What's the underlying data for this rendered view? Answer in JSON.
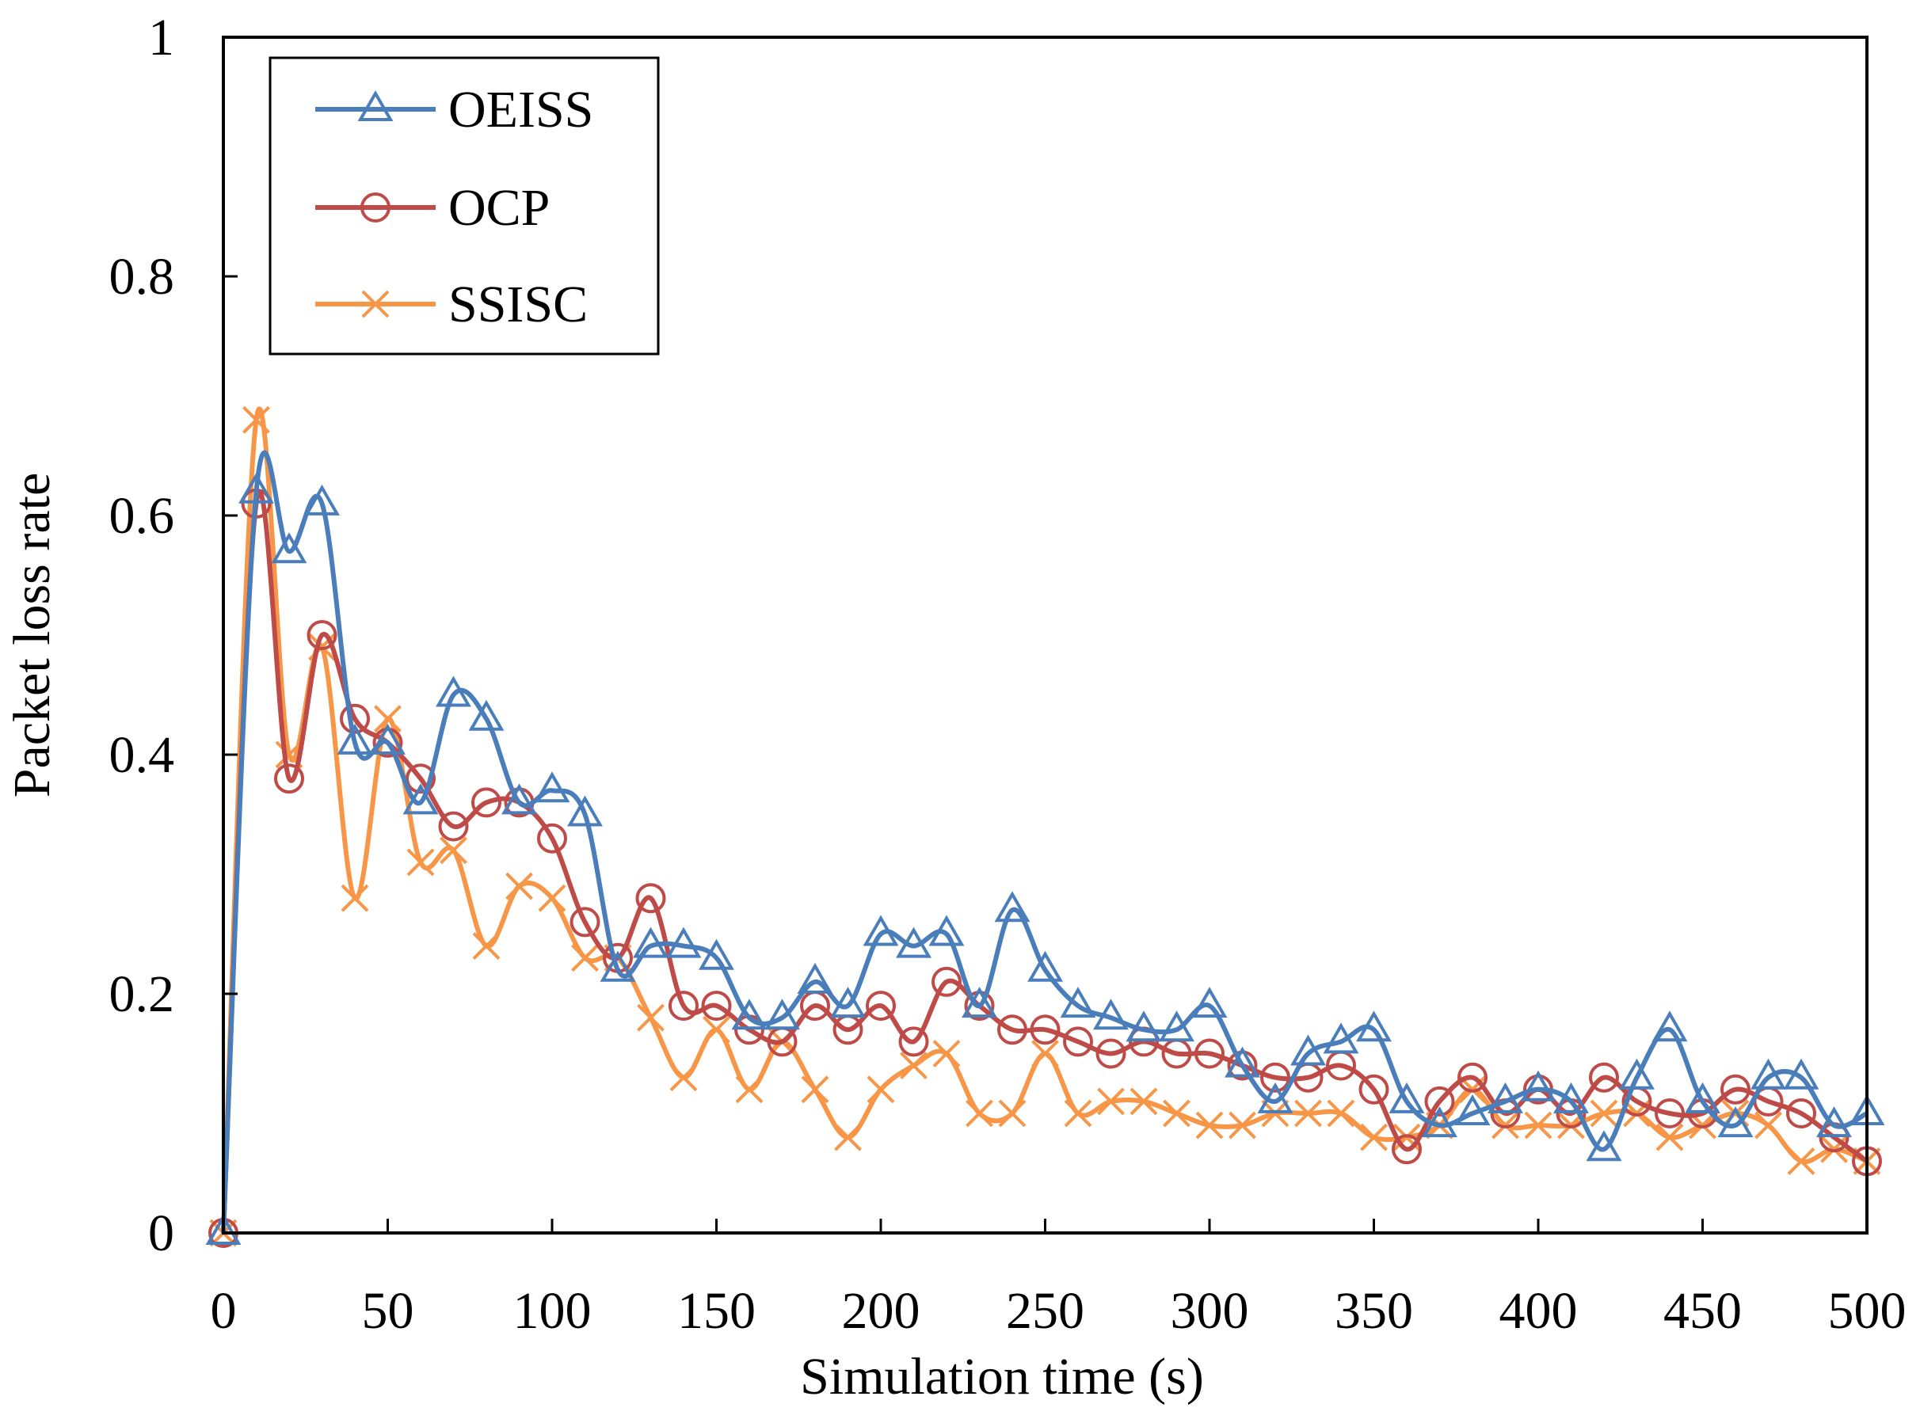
{
  "chart_data": {
    "type": "line",
    "title": "",
    "xlabel": "Simulation time (s)",
    "ylabel": "Packet loss rate",
    "xlim": [
      0,
      500
    ],
    "ylim": [
      0,
      1
    ],
    "x_ticks": [
      "0",
      "50",
      "100",
      "150",
      "200",
      "250",
      "300",
      "350",
      "400",
      "450",
      "500"
    ],
    "y_ticks": [
      "0",
      "0.2",
      "0.4",
      "0.6",
      "0.8",
      "1"
    ],
    "grid": false,
    "legend": {
      "position": "top-left",
      "entries": [
        "OEISS",
        "OCP",
        "SSISC"
      ]
    },
    "x": [
      0,
      10,
      20,
      30,
      40,
      50,
      60,
      70,
      80,
      90,
      100,
      110,
      120,
      130,
      140,
      150,
      160,
      170,
      180,
      190,
      200,
      210,
      220,
      230,
      240,
      250,
      260,
      270,
      280,
      290,
      300,
      310,
      320,
      330,
      340,
      350,
      360,
      370,
      380,
      390,
      400,
      410,
      420,
      430,
      440,
      450,
      460,
      470,
      480,
      490,
      500
    ],
    "series": [
      {
        "name": "OEISS",
        "color": "#4a7ebb",
        "marker": "triangle",
        "values": [
          0,
          0.62,
          0.57,
          0.61,
          0.41,
          0.41,
          0.36,
          0.45,
          0.43,
          0.36,
          0.37,
          0.35,
          0.22,
          0.24,
          0.24,
          0.23,
          0.18,
          0.18,
          0.21,
          0.19,
          0.25,
          0.24,
          0.25,
          0.19,
          0.27,
          0.22,
          0.19,
          0.18,
          0.17,
          0.17,
          0.19,
          0.14,
          0.11,
          0.15,
          0.16,
          0.17,
          0.11,
          0.09,
          0.1,
          0.11,
          0.12,
          0.11,
          0.07,
          0.13,
          0.17,
          0.11,
          0.09,
          0.13,
          0.13,
          0.09,
          0.1
        ]
      },
      {
        "name": "OCP",
        "color": "#be4b48",
        "marker": "circle",
        "values": [
          0,
          0.61,
          0.38,
          0.5,
          0.43,
          0.41,
          0.38,
          0.34,
          0.36,
          0.36,
          0.33,
          0.26,
          0.23,
          0.28,
          0.19,
          0.19,
          0.17,
          0.16,
          0.19,
          0.17,
          0.19,
          0.16,
          0.21,
          0.19,
          0.17,
          0.17,
          0.16,
          0.15,
          0.16,
          0.15,
          0.15,
          0.14,
          0.13,
          0.13,
          0.14,
          0.12,
          0.07,
          0.11,
          0.13,
          0.1,
          0.12,
          0.1,
          0.13,
          0.11,
          0.1,
          0.1,
          0.12,
          0.11,
          0.1,
          0.08,
          0.06
        ]
      },
      {
        "name": "SSISC",
        "color": "#f79646",
        "marker": "x",
        "values": [
          0,
          0.68,
          0.4,
          0.49,
          0.28,
          0.43,
          0.31,
          0.32,
          0.24,
          0.29,
          0.28,
          0.23,
          0.23,
          0.18,
          0.13,
          0.17,
          0.12,
          0.16,
          0.12,
          0.08,
          0.12,
          0.14,
          0.15,
          0.1,
          0.1,
          0.15,
          0.1,
          0.11,
          0.11,
          0.1,
          0.09,
          0.09,
          0.1,
          0.1,
          0.1,
          0.08,
          0.08,
          0.09,
          0.12,
          0.09,
          0.09,
          0.09,
          0.1,
          0.1,
          0.08,
          0.09,
          0.1,
          0.09,
          0.06,
          0.07,
          0.06
        ]
      }
    ]
  }
}
